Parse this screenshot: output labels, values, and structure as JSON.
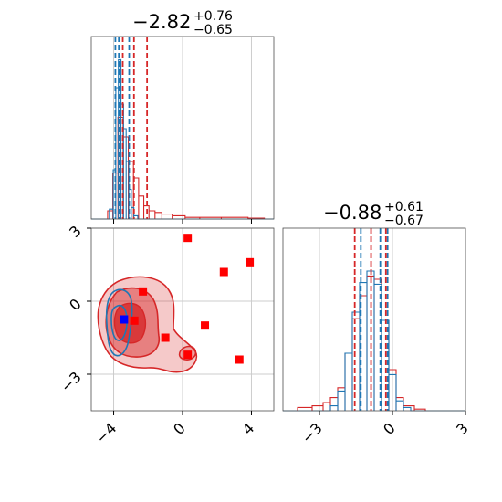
{
  "chart_data": {
    "type": "corner",
    "colors": {
      "red": "#d62728",
      "blue": "#1f77b4",
      "grid": "#cccccc",
      "axis": "#4d4d4d"
    },
    "grid": true,
    "titles": [
      {
        "value": "−2.82",
        "upper": "+0.76",
        "lower": "−0.65"
      },
      {
        "value": "−0.88",
        "upper": "+0.61",
        "lower": "−0.67"
      }
    ],
    "param1": {
      "xlim": [
        -5.3,
        5.3
      ],
      "ticks": [
        -4,
        0,
        4
      ],
      "tick_labels": [
        "−4",
        "0",
        "4"
      ],
      "quantiles_red": [
        -3.47,
        -2.82,
        -2.06
      ],
      "quantiles_blue": [
        -3.9,
        -3.7,
        -3.1
      ]
    },
    "param2": {
      "xlim": [
        -4.5,
        3.0
      ],
      "ticks": [
        -3,
        0,
        3
      ],
      "tick_labels": [
        "−3",
        "0",
        "3"
      ],
      "quantiles_red": [
        -1.55,
        -0.88,
        -0.27
      ],
      "quantiles_blue": [
        -1.3,
        -0.5,
        -0.2
      ]
    },
    "scatter_red": [
      {
        "x": 0.3,
        "y": 2.6
      },
      {
        "x": 2.4,
        "y": 1.2
      },
      {
        "x": 3.9,
        "y": 1.6
      },
      {
        "x": -2.3,
        "y": 0.4
      },
      {
        "x": -2.8,
        "y": -0.8
      },
      {
        "x": 1.3,
        "y": -1.0
      },
      {
        "x": -1.0,
        "y": -1.5
      },
      {
        "x": 0.3,
        "y": -2.2
      },
      {
        "x": 3.3,
        "y": -2.4
      }
    ],
    "scatter_blue": [
      {
        "x": -3.4,
        "y": -0.75
      }
    ],
    "hist1_red": [
      {
        "x": -4.2,
        "v": 0.05
      },
      {
        "x": -3.9,
        "v": 0.28
      },
      {
        "x": -3.6,
        "v": 0.62
      },
      {
        "x": -3.3,
        "v": 0.5
      },
      {
        "x": -3.0,
        "v": 0.35
      },
      {
        "x": -2.7,
        "v": 0.25
      },
      {
        "x": -2.4,
        "v": 0.14
      },
      {
        "x": -2.1,
        "v": 0.08
      },
      {
        "x": -1.8,
        "v": 0.05
      },
      {
        "x": -1.4,
        "v": 0.04
      },
      {
        "x": -1.0,
        "v": 0.03
      },
      {
        "x": -0.2,
        "v": 0.02
      },
      {
        "x": 0.5,
        "v": 0.01
      },
      {
        "x": 1.5,
        "v": 0.01
      },
      {
        "x": 3.0,
        "v": 0.01
      },
      {
        "x": 4.6,
        "v": 0.005
      }
    ],
    "hist1_blue": [
      {
        "x": -4.1,
        "v": 0.06
      },
      {
        "x": -3.95,
        "v": 0.3
      },
      {
        "x": -3.8,
        "v": 0.8
      },
      {
        "x": -3.65,
        "v": 0.97
      },
      {
        "x": -3.5,
        "v": 0.7
      },
      {
        "x": -3.35,
        "v": 0.55
      },
      {
        "x": -3.2,
        "v": 0.35
      },
      {
        "x": -3.05,
        "v": 0.18
      },
      {
        "x": -2.9,
        "v": 0.07
      },
      {
        "x": -2.75,
        "v": 0.02
      }
    ],
    "hist2_red": [
      {
        "x": -4.2,
        "v": 0.0
      },
      {
        "x": -3.6,
        "v": 0.02
      },
      {
        "x": -3.0,
        "v": 0.03
      },
      {
        "x": -2.7,
        "v": 0.05
      },
      {
        "x": -2.4,
        "v": 0.08
      },
      {
        "x": -2.1,
        "v": 0.14
      },
      {
        "x": -1.8,
        "v": 0.35
      },
      {
        "x": -1.5,
        "v": 0.56
      },
      {
        "x": -1.2,
        "v": 0.7
      },
      {
        "x": -0.9,
        "v": 0.82
      },
      {
        "x": -0.6,
        "v": 0.8
      },
      {
        "x": -0.3,
        "v": 0.55
      },
      {
        "x": 0.0,
        "v": 0.25
      },
      {
        "x": 0.3,
        "v": 0.08
      },
      {
        "x": 0.6,
        "v": 0.03
      },
      {
        "x": 1.2,
        "v": 0.01
      }
    ],
    "hist2_blue": [
      {
        "x": -2.4,
        "v": 0.03
      },
      {
        "x": -2.1,
        "v": 0.12
      },
      {
        "x": -1.8,
        "v": 0.35
      },
      {
        "x": -1.5,
        "v": 0.6
      },
      {
        "x": -1.2,
        "v": 0.78
      },
      {
        "x": -0.9,
        "v": 0.85
      },
      {
        "x": -0.6,
        "v": 0.77
      },
      {
        "x": -0.3,
        "v": 0.55
      },
      {
        "x": 0.0,
        "v": 0.22
      },
      {
        "x": 0.3,
        "v": 0.06
      },
      {
        "x": 0.6,
        "v": 0.02
      }
    ]
  }
}
